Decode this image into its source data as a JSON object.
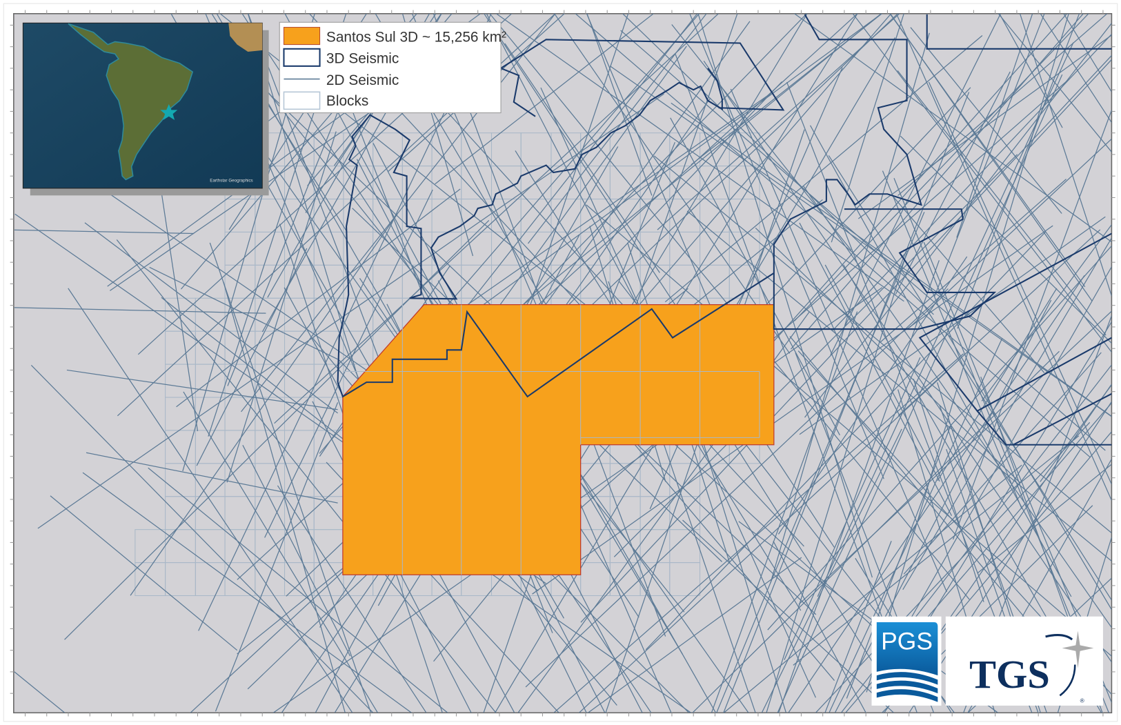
{
  "colors": {
    "background": "#d3d2d6",
    "survey_fill": "#f7a11c",
    "survey_stroke": "#c0392b",
    "seismic_3d": "#1a3a6b",
    "seismic_2d": "#5c7a96",
    "blocks": "#a9b8c8",
    "pgs_blue": "#0a6fb8",
    "tgs_navy": "#0d2f5e",
    "inset_star": "#14a8b0"
  },
  "legend": {
    "items": [
      {
        "label": "Santos Sul 3D ~ 15,256 km²",
        "symbol": "orange-fill-rect"
      },
      {
        "label": "3D Seismic",
        "symbol": "navy-outline-rect"
      },
      {
        "label": "2D Seismic",
        "symbol": "gray-line"
      },
      {
        "label": "Blocks",
        "symbol": "light-outline-rect"
      }
    ]
  },
  "inset": {
    "attribution": "Earthstar Geographics",
    "marker_icon": "star-icon"
  },
  "logos": {
    "pgs": "PGS",
    "tgs": "TGS",
    "tgs_registered": "®"
  }
}
